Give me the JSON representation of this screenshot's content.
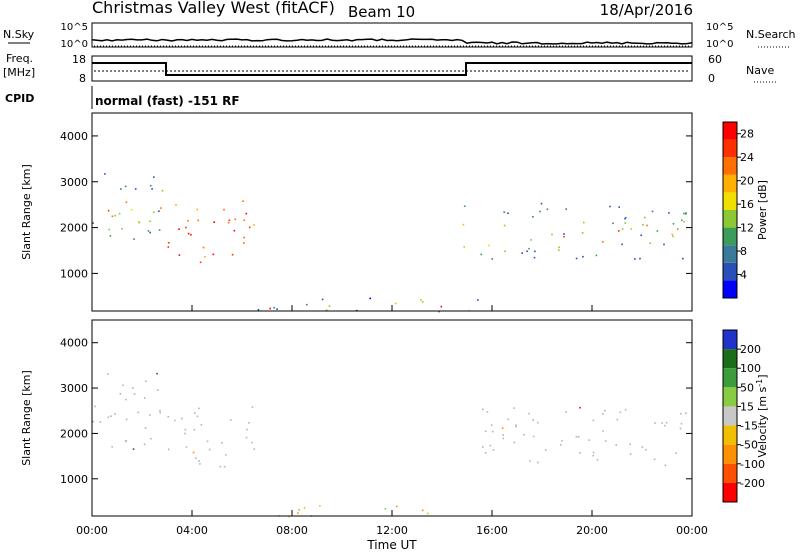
{
  "header": {
    "station": "Christmas Valley West (fitACF)",
    "beam": "Beam 10",
    "date": "18/Apr/2016"
  },
  "noise_panel": {
    "left_label": "N.Sky",
    "right_label": "N.Search",
    "left_ticks": [
      "10^5",
      "10^0"
    ],
    "right_ticks": [
      "10^5",
      "10^0"
    ]
  },
  "freq_panel": {
    "left_label_1": "Freq.",
    "left_label_2": "[MHz]",
    "right_label": "Nave",
    "left_ticks": [
      "18",
      "8"
    ],
    "right_ticks": [
      "60",
      "0"
    ]
  },
  "cpid": {
    "label": "CPID",
    "text": "normal (fast) -151 RF"
  },
  "colors": {
    "power_scale": [
      "#0000ff",
      "#2a4fb8",
      "#3a7a9a",
      "#3c9c5a",
      "#8cc832",
      "#f0e000",
      "#ffb000",
      "#ff7000",
      "#ff3000",
      "#ff0000"
    ],
    "velocity_scale": [
      "#2233cc",
      "#1a6e1a",
      "#3c9c3c",
      "#88cc44",
      "#c8c8c8",
      "#f0c000",
      "#ff9000",
      "#ff5000",
      "#ff0000"
    ],
    "ground_scatter": "#b4b4b4"
  },
  "chart_data": [
    {
      "type": "heatmap",
      "name": "power",
      "xlabel": "",
      "ylabel": "Slant Range [km]",
      "x_ticks": [
        "00:00",
        "04:00",
        "08:00",
        "12:00",
        "16:00",
        "20:00",
        "00:00"
      ],
      "y_ticks": [
        "1000",
        "2000",
        "3000",
        "4000"
      ],
      "xlim_hours": [
        0,
        24
      ],
      "ylim_km": [
        180,
        4500
      ],
      "colorbar": {
        "label": "Power [dB]",
        "ticks": [
          "4",
          "8",
          "12",
          "16",
          "20",
          "24",
          "28"
        ],
        "range": [
          0,
          30
        ]
      },
      "regions": [
        {
          "t0": 0.0,
          "t1": 2.8,
          "r0": 1600,
          "r1": 3400,
          "level": "mixed"
        },
        {
          "t0": 3.0,
          "t1": 6.8,
          "r0": 1250,
          "r1": 2600,
          "level": "high"
        },
        {
          "t0": 14.7,
          "t1": 15.2,
          "r0": 1500,
          "r1": 2500,
          "level": "mid"
        },
        {
          "t0": 15.5,
          "t1": 23.8,
          "r0": 1300,
          "r1": 2600,
          "level": "mixed"
        },
        {
          "t0": 6.5,
          "t1": 16.0,
          "r0": 180,
          "r1": 500,
          "level": "low"
        }
      ]
    },
    {
      "type": "heatmap",
      "name": "velocity",
      "xlabel": "Time UT",
      "ylabel": "Slant Range [km]",
      "x_ticks": [
        "00:00",
        "04:00",
        "08:00",
        "12:00",
        "16:00",
        "20:00",
        "00:00"
      ],
      "y_ticks": [
        "1000",
        "2000",
        "3000",
        "4000"
      ],
      "xlim_hours": [
        0,
        24
      ],
      "ylim_km": [
        180,
        4500
      ],
      "colorbar": {
        "label": "Velocity [m s^-1]",
        "ticks": [
          "200",
          "100",
          "50",
          "15",
          "-15",
          "-50",
          "-100",
          "-200"
        ],
        "range": [
          -250,
          250
        ]
      },
      "regions": [
        {
          "t0": 0.0,
          "t1": 2.8,
          "r0": 1600,
          "r1": 3400,
          "class": "ground"
        },
        {
          "t0": 3.0,
          "t1": 6.8,
          "r0": 1250,
          "r1": 2600,
          "class": "ground"
        },
        {
          "t0": 15.5,
          "t1": 23.8,
          "r0": 1300,
          "r1": 2600,
          "class": "ground"
        },
        {
          "t0": 7.0,
          "t1": 14.0,
          "r0": 180,
          "r1": 450,
          "class": "negative"
        }
      ]
    }
  ]
}
